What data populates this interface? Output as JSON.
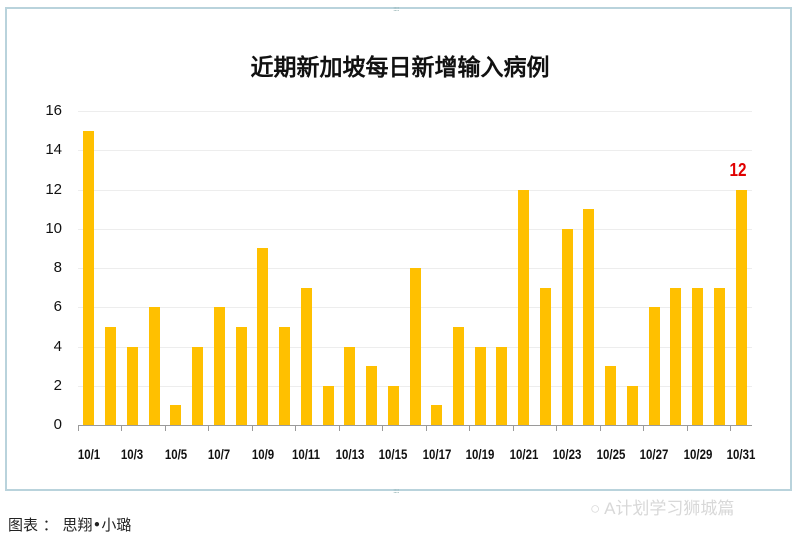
{
  "chart_data": {
    "type": "bar",
    "title": "近期新加坡每日新增输入病例",
    "xlabel": "",
    "ylabel": "",
    "ylim": [
      0,
      16
    ],
    "yticks": [
      0,
      2,
      4,
      6,
      8,
      10,
      12,
      14,
      16
    ],
    "grid": true,
    "legend": null,
    "categories": [
      "10/1",
      "10/2",
      "10/3",
      "10/4",
      "10/5",
      "10/6",
      "10/7",
      "10/8",
      "10/9",
      "10/10",
      "10/11",
      "10/12",
      "10/13",
      "10/14",
      "10/15",
      "10/16",
      "10/17",
      "10/18",
      "10/19",
      "10/20",
      "10/21",
      "10/22",
      "10/23",
      "10/24",
      "10/25",
      "10/26",
      "10/27",
      "10/28",
      "10/29",
      "10/30",
      "10/31"
    ],
    "xtick_labels": [
      "10/1",
      "10/3",
      "10/5",
      "10/7",
      "10/9",
      "10/11",
      "10/13",
      "10/15",
      "10/17",
      "10/19",
      "10/21",
      "10/23",
      "10/25",
      "10/27",
      "10/29",
      "10/31"
    ],
    "values": [
      15,
      5,
      4,
      6,
      1,
      4,
      6,
      5,
      9,
      5,
      7,
      2,
      4,
      3,
      2,
      8,
      1,
      5,
      4,
      4,
      12,
      7,
      10,
      11,
      3,
      2,
      6,
      7,
      7,
      7,
      12
    ],
    "bar_color": "#ffc000",
    "annotations": [
      {
        "category": "10/31",
        "text": "12",
        "color": "#e00000"
      }
    ]
  },
  "caption": "图表 ： 思翔•小璐",
  "watermark": "A计划学习狮城篇"
}
